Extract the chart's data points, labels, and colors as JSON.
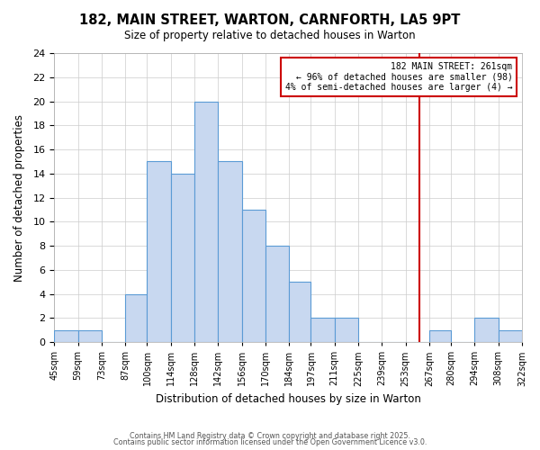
{
  "title": "182, MAIN STREET, WARTON, CARNFORTH, LA5 9PT",
  "subtitle": "Size of property relative to detached houses in Warton",
  "xlabel": "Distribution of detached houses by size in Warton",
  "ylabel": "Number of detached properties",
  "bin_edges": [
    45,
    59,
    73,
    87,
    100,
    114,
    128,
    142,
    156,
    170,
    184,
    197,
    211,
    225,
    239,
    253,
    267,
    280,
    294,
    308,
    322
  ],
  "bin_labels": [
    "45sqm",
    "59sqm",
    "73sqm",
    "87sqm",
    "100sqm",
    "114sqm",
    "128sqm",
    "142sqm",
    "156sqm",
    "170sqm",
    "184sqm",
    "197sqm",
    "211sqm",
    "225sqm",
    "239sqm",
    "253sqm",
    "267sqm",
    "280sqm",
    "294sqm",
    "308sqm",
    "322sqm"
  ],
  "counts": [
    1,
    1,
    0,
    4,
    15,
    14,
    20,
    15,
    11,
    8,
    5,
    2,
    2,
    0,
    0,
    0,
    1,
    0,
    2,
    1
  ],
  "bar_facecolor": "#c8d8f0",
  "bar_edgecolor": "#5b9bd5",
  "ylim": [
    0,
    24
  ],
  "yticks": [
    0,
    2,
    4,
    6,
    8,
    10,
    12,
    14,
    16,
    18,
    20,
    22,
    24
  ],
  "vline_x": 261,
  "vline_color": "#cc0000",
  "annotation_title": "182 MAIN STREET: 261sqm",
  "annotation_line1": "← 96% of detached houses are smaller (98)",
  "annotation_line2": "4% of semi-detached houses are larger (4) →",
  "annotation_box_edgecolor": "#cc0000",
  "footer1": "Contains HM Land Registry data © Crown copyright and database right 2025.",
  "footer2": "Contains public sector information licensed under the Open Government Licence v3.0.",
  "background_color": "#ffffff",
  "grid_color": "#cccccc"
}
